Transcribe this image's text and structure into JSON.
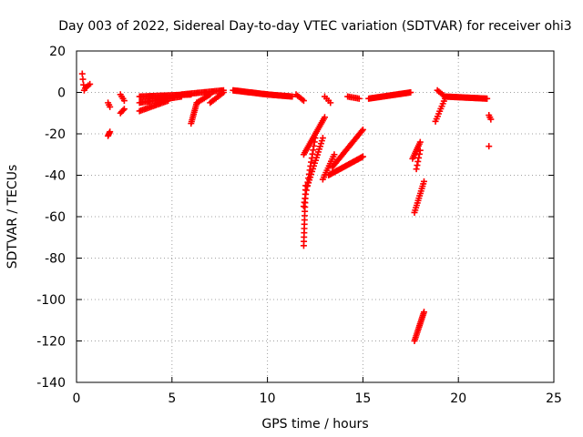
{
  "chart_data": {
    "type": "scatter",
    "title": "Day 003 of 2022, Sidereal Day-to-day VTEC variation (SDTVAR) for receiver ohi3",
    "xlabel": "GPS time / hours",
    "ylabel": "SDTVAR / TECUs",
    "xlim": [
      0,
      25
    ],
    "ylim": [
      -140,
      20
    ],
    "xticks": [
      0,
      5,
      10,
      15,
      20,
      25
    ],
    "yticks": [
      -140,
      -120,
      -100,
      -80,
      -60,
      -40,
      -20,
      0,
      20
    ],
    "grid": true,
    "marker": "+",
    "color": "#ff0000",
    "segments": [
      {
        "x0": 0.3,
        "y0": 9,
        "x1": 0.4,
        "y1": 1,
        "n": 4
      },
      {
        "x0": 0.45,
        "y0": 2,
        "x1": 0.7,
        "y1": 4,
        "n": 4
      },
      {
        "x0": 1.65,
        "y0": -5,
        "x1": 1.75,
        "y1": -7,
        "n": 3
      },
      {
        "x0": 1.65,
        "y0": -21,
        "x1": 1.75,
        "y1": -19,
        "n": 4
      },
      {
        "x0": 2.3,
        "y0": -1,
        "x1": 2.5,
        "y1": -4,
        "n": 4
      },
      {
        "x0": 2.3,
        "y0": -10,
        "x1": 2.5,
        "y1": -8,
        "n": 4
      },
      {
        "x0": 3.3,
        "y0": -2,
        "x1": 6.0,
        "y1": -1,
        "n": 40
      },
      {
        "x0": 3.3,
        "y0": -5,
        "x1": 5.5,
        "y1": -2,
        "n": 30
      },
      {
        "x0": 3.3,
        "y0": -9,
        "x1": 4.8,
        "y1": -4,
        "n": 20
      },
      {
        "x0": 5.5,
        "y0": -1,
        "x1": 7.7,
        "y1": 1,
        "n": 30
      },
      {
        "x0": 6.0,
        "y0": -15,
        "x1": 6.3,
        "y1": -5,
        "n": 12
      },
      {
        "x0": 6.3,
        "y0": -5,
        "x1": 7.0,
        "y1": -1,
        "n": 10
      },
      {
        "x0": 7.0,
        "y0": -5,
        "x1": 7.7,
        "y1": 0,
        "n": 10
      },
      {
        "x0": 8.2,
        "y0": 1,
        "x1": 10.0,
        "y1": -1,
        "n": 40
      },
      {
        "x0": 10.0,
        "y0": -1,
        "x1": 11.3,
        "y1": -2,
        "n": 25
      },
      {
        "x0": 11.5,
        "y0": -1,
        "x1": 11.9,
        "y1": -4,
        "n": 6
      },
      {
        "x0": 13.0,
        "y0": -2,
        "x1": 13.3,
        "y1": -5,
        "n": 4
      },
      {
        "x0": 11.9,
        "y0": -74,
        "x1": 12.0,
        "y1": -45,
        "n": 15
      },
      {
        "x0": 11.9,
        "y0": -55,
        "x1": 12.5,
        "y1": -22,
        "n": 18
      },
      {
        "x0": 11.9,
        "y0": -30,
        "x1": 13.0,
        "y1": -12,
        "n": 22
      },
      {
        "x0": 12.1,
        "y0": -45,
        "x1": 12.9,
        "y1": -22,
        "n": 18
      },
      {
        "x0": 12.9,
        "y0": -42,
        "x1": 13.5,
        "y1": -30,
        "n": 12
      },
      {
        "x0": 13.4,
        "y0": -36,
        "x1": 15.0,
        "y1": -18,
        "n": 30
      },
      {
        "x0": 13.2,
        "y0": -40,
        "x1": 15.0,
        "y1": -31,
        "n": 30
      },
      {
        "x0": 14.2,
        "y0": -2,
        "x1": 14.8,
        "y1": -3,
        "n": 8
      },
      {
        "x0": 15.3,
        "y0": -3,
        "x1": 17.5,
        "y1": 0,
        "n": 40
      },
      {
        "x0": 17.7,
        "y0": -58,
        "x1": 18.2,
        "y1": -43,
        "n": 14
      },
      {
        "x0": 17.6,
        "y0": -32,
        "x1": 18.0,
        "y1": -24,
        "n": 10
      },
      {
        "x0": 17.8,
        "y0": -37,
        "x1": 18.0,
        "y1": -28,
        "n": 6
      },
      {
        "x0": 17.7,
        "y0": -120,
        "x1": 18.2,
        "y1": -106,
        "n": 18
      },
      {
        "x0": 18.8,
        "y0": -14,
        "x1": 19.3,
        "y1": -3,
        "n": 10
      },
      {
        "x0": 18.9,
        "y0": 1,
        "x1": 19.3,
        "y1": -2,
        "n": 6
      },
      {
        "x0": 19.3,
        "y0": -2,
        "x1": 21.5,
        "y1": -3,
        "n": 45
      },
      {
        "x0": 21.6,
        "y0": -11,
        "x1": 21.7,
        "y1": -13,
        "n": 3
      },
      {
        "x0": 21.6,
        "y0": -26,
        "x1": 21.65,
        "y1": -26,
        "n": 1
      }
    ]
  }
}
